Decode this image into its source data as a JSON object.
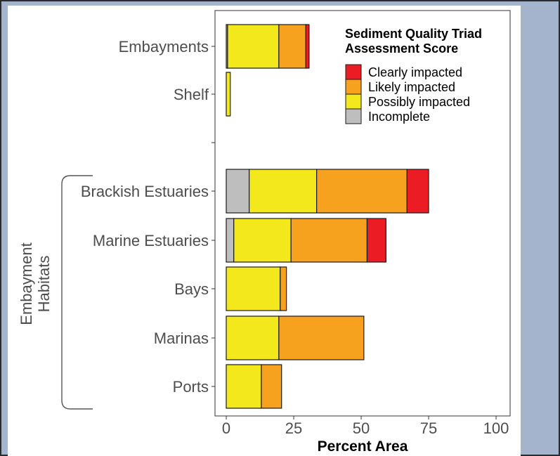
{
  "chart_data": {
    "type": "bar",
    "orientation": "horizontal",
    "stacked": true,
    "categories": [
      "Embayments",
      "Shelf",
      "",
      "Brackish Estuaries",
      "Marine Estuaries",
      "Bays",
      "Marinas",
      "Ports"
    ],
    "series": [
      {
        "name": "Incomplete",
        "color": "#bebebe",
        "values": [
          0.5,
          0,
          0,
          8.5,
          2.8,
          0,
          0,
          0
        ]
      },
      {
        "name": "Possibly impacted",
        "color": "#f2e81b",
        "values": [
          19,
          1.5,
          0,
          25,
          21.2,
          20,
          19.5,
          13
        ]
      },
      {
        "name": "Likely impacted",
        "color": "#f7a21e",
        "values": [
          10,
          0,
          0,
          33.5,
          28.2,
          2.3,
          31.5,
          7.5
        ]
      },
      {
        "name": "Clearly impacted",
        "color": "#ec1c24",
        "values": [
          1.2,
          0,
          0,
          8,
          7,
          0,
          0,
          0
        ]
      }
    ],
    "xlabel": "Percent Area",
    "ylabel": "",
    "xlim": [
      0,
      100
    ],
    "xticks": [
      0,
      25,
      50,
      75,
      100
    ],
    "grid": false,
    "legend": {
      "title_line1": "Sediment Quality Triad",
      "title_line2": "Assessment Score",
      "placement": "top-right",
      "entries": [
        {
          "label": "Clearly impacted",
          "color": "#ec1c24"
        },
        {
          "label": "Likely impacted",
          "color": "#f7a21e"
        },
        {
          "label": "Possibly impacted",
          "color": "#f2e81b"
        },
        {
          "label": "Incomplete",
          "color": "#bebebe"
        }
      ]
    },
    "group_label": {
      "line1": "Embayment",
      "line2": "Habitats"
    }
  }
}
